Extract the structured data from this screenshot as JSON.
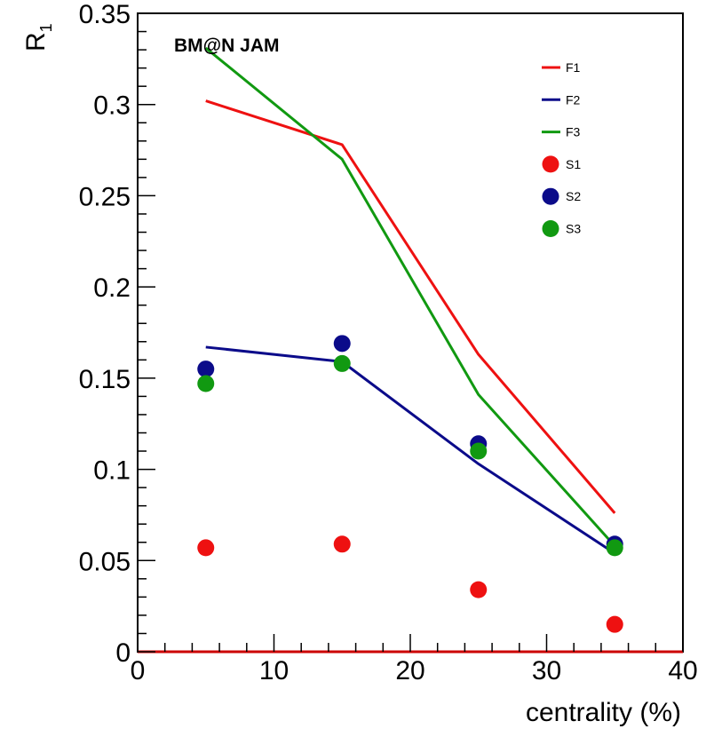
{
  "chart_data": {
    "type": "line",
    "annotation": "BM@N JAM",
    "xlabel": "centrality (%)",
    "ylabel": "R",
    "ylabel_sub": "1",
    "xlim": [
      0,
      40
    ],
    "ylim": [
      0,
      0.35
    ],
    "x_ticks": [
      0,
      10,
      20,
      30,
      40
    ],
    "x_tick_labels": [
      "0",
      "10",
      "20",
      "30",
      "40"
    ],
    "y_ticks": [
      0,
      0.05,
      0.1,
      0.15,
      0.2,
      0.25,
      0.3,
      0.35
    ],
    "y_tick_labels": [
      "0",
      "0.05",
      "0.1",
      "0.15",
      "0.2",
      "0.25",
      "0.3",
      "0.35"
    ],
    "grid": false,
    "legend_position": "top-right",
    "x": [
      5,
      15,
      25,
      35
    ],
    "series": [
      {
        "name": "F1",
        "kind": "line",
        "color": "#ee1111",
        "values": [
          0.302,
          0.278,
          0.163,
          0.076
        ]
      },
      {
        "name": "F2",
        "kind": "line",
        "color": "#0b0b8a",
        "values": [
          0.167,
          0.159,
          0.103,
          0.054
        ]
      },
      {
        "name": "F3",
        "kind": "line",
        "color": "#119911",
        "values": [
          0.331,
          0.27,
          0.141,
          0.058
        ]
      },
      {
        "name": "S1",
        "kind": "marker",
        "color": "#ee1111",
        "values": [
          0.057,
          0.059,
          0.034,
          0.015
        ]
      },
      {
        "name": "S2",
        "kind": "marker",
        "color": "#0b0b8a",
        "values": [
          0.155,
          0.169,
          0.114,
          0.059
        ]
      },
      {
        "name": "S3",
        "kind": "marker",
        "color": "#119911",
        "values": [
          0.147,
          0.158,
          0.11,
          0.057
        ]
      }
    ],
    "baseline_color": "#cc0000"
  }
}
